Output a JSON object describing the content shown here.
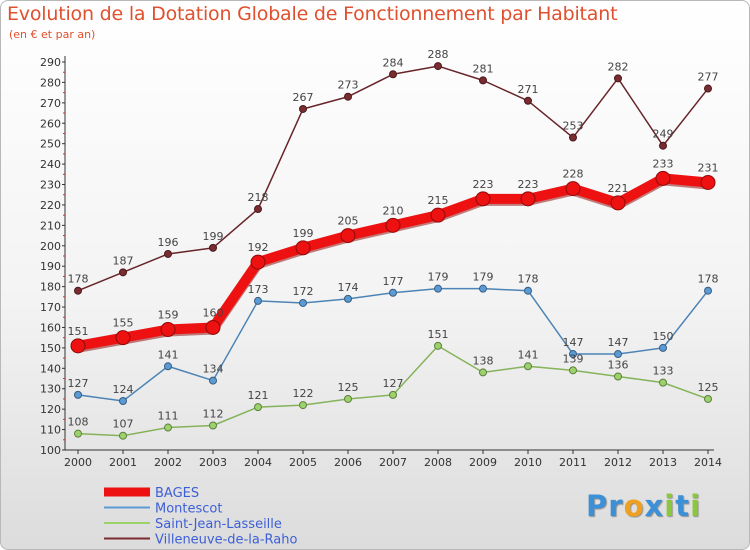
{
  "header": {
    "title": "Evolution de la Dotation Globale de Fonctionnement par Habitant",
    "subtitle": "(en € et par an)"
  },
  "logo": {
    "text": "Proxiti",
    "letters": [
      "P",
      "r",
      "o",
      "x",
      "i",
      "t",
      "i"
    ],
    "colors": [
      "#3d8fd6",
      "#3d8fd6",
      "#f0a020",
      "#3d8fd6",
      "#8cc63f",
      "#3d8fd6",
      "#8cc63f"
    ]
  },
  "chart_data": {
    "type": "line",
    "title": "Evolution de la Dotation Globale de Fonctionnement par Habitant",
    "subtitle": "(en € et par an)",
    "x": [
      2000,
      2001,
      2002,
      2003,
      2004,
      2005,
      2006,
      2007,
      2008,
      2009,
      2010,
      2011,
      2012,
      2013,
      2014
    ],
    "ylim": [
      100,
      290
    ],
    "ytick_step": 10,
    "grid": false,
    "legend_position": "bottom-left",
    "series": [
      {
        "name": "BAGES",
        "color": "#ee1111",
        "values": [
          151,
          155,
          159,
          160,
          192,
          199,
          205,
          210,
          215,
          223,
          223,
          228,
          221,
          233,
          231
        ]
      },
      {
        "name": "Montescot",
        "color": "#5b9bd5",
        "values": [
          127,
          124,
          141,
          134,
          173,
          172,
          174,
          177,
          179,
          179,
          178,
          147,
          147,
          150,
          178
        ]
      },
      {
        "name": "Saint-Jean-Lasseille",
        "color": "#9cd26a",
        "values": [
          108,
          107,
          111,
          112,
          121,
          122,
          125,
          127,
          151,
          138,
          141,
          139,
          136,
          133,
          125
        ]
      },
      {
        "name": "Villeneuve-de-la-Raho",
        "color": "#7a2c30",
        "values": [
          178,
          187,
          196,
          199,
          218,
          267,
          273,
          284,
          288,
          281,
          271,
          253,
          282,
          249,
          277
        ]
      }
    ]
  }
}
